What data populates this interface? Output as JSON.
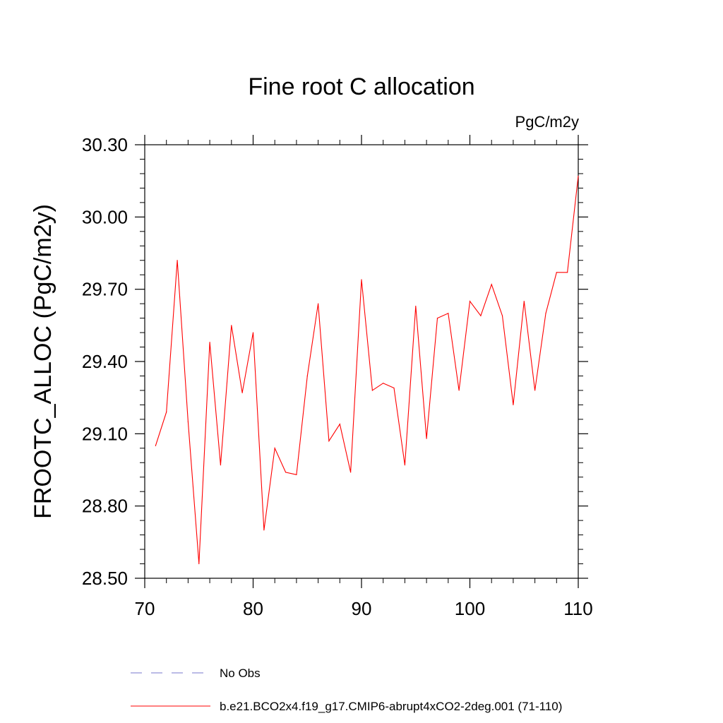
{
  "chart_data": {
    "type": "line",
    "title": "Fine root C allocation",
    "units_label": "PgC/m2y",
    "ylabel": "FROOTC_ALLOC  (PgC/m2y)",
    "xlabel": "",
    "xlim": [
      70,
      110
    ],
    "ylim": [
      28.5,
      30.3
    ],
    "x_ticks": [
      70,
      80,
      90,
      100,
      110
    ],
    "x_tick_labels": [
      "70",
      "80",
      "90",
      "100",
      "110"
    ],
    "y_ticks": [
      28.5,
      28.8,
      29.1,
      29.4,
      29.7,
      30.0,
      30.3
    ],
    "y_tick_labels": [
      "28.50",
      "28.80",
      "29.10",
      "29.40",
      "29.70",
      "30.00",
      "30.30"
    ],
    "grid": false,
    "legend_position": "bottom",
    "series": [
      {
        "name": "b.e21.BCO2x4.f19_g17.CMIP6-abrupt4xCO2-2deg.001 (71-110)",
        "color": "#ff0000",
        "style": "solid",
        "x": [
          71,
          72,
          73,
          74,
          75,
          76,
          77,
          78,
          79,
          80,
          81,
          82,
          83,
          84,
          85,
          86,
          87,
          88,
          89,
          90,
          91,
          92,
          93,
          94,
          95,
          96,
          97,
          98,
          99,
          100,
          101,
          102,
          103,
          104,
          105,
          106,
          107,
          108,
          109,
          110
        ],
        "y": [
          29.05,
          29.19,
          29.82,
          29.15,
          28.56,
          29.48,
          28.97,
          29.55,
          29.27,
          29.52,
          28.7,
          29.04,
          28.94,
          28.93,
          29.34,
          29.64,
          29.07,
          29.14,
          28.94,
          29.74,
          29.28,
          29.31,
          29.29,
          28.97,
          29.63,
          29.08,
          29.58,
          29.6,
          29.28,
          29.65,
          29.59,
          29.72,
          29.59,
          29.22,
          29.65,
          29.28,
          29.6,
          29.77,
          29.77,
          30.17
        ]
      }
    ],
    "legend": [
      {
        "label": "No Obs",
        "color": "#7777cc",
        "style": "dashed"
      },
      {
        "label": "b.e21.BCO2x4.f19_g17.CMIP6-abrupt4xCO2-2deg.001 (71-110)",
        "color": "#ff0000",
        "style": "solid"
      }
    ]
  }
}
